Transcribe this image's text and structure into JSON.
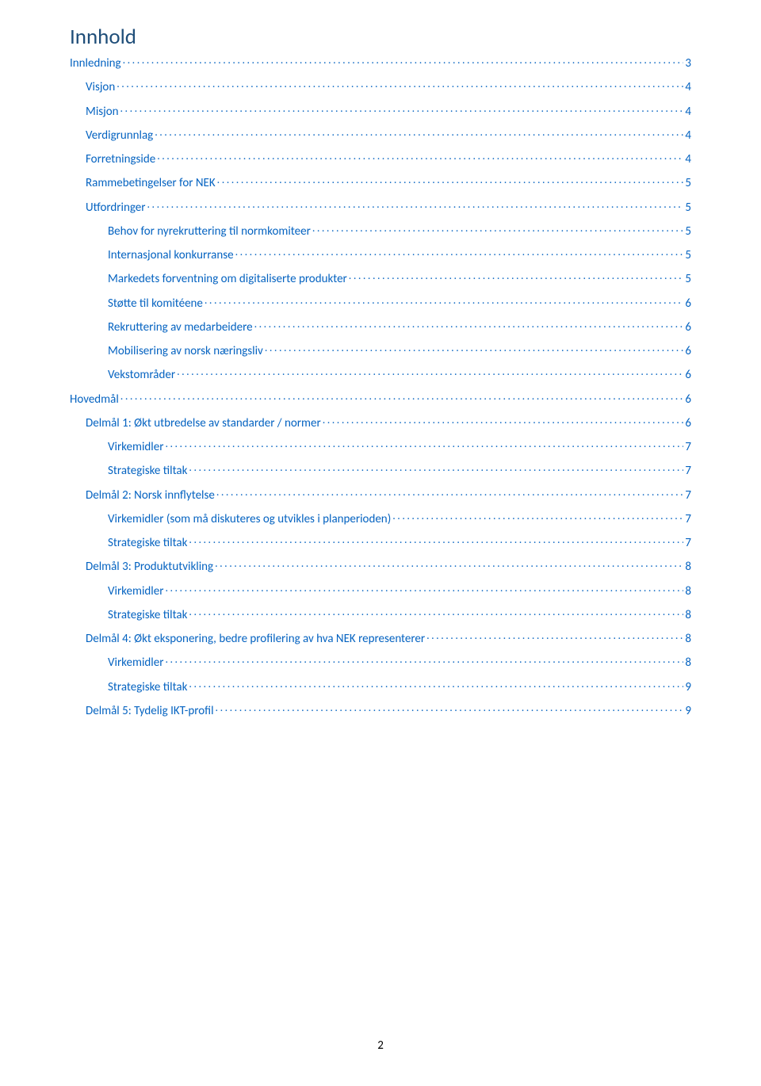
{
  "title": "Innhold",
  "title_color": "#1f4e79",
  "link_color": "#0563c1",
  "dot_color": "#0563c1",
  "text_font_size": 15,
  "title_font_size": 27,
  "background_color": "#ffffff",
  "page_number": "2",
  "entries": [
    {
      "label": "Innledning",
      "page": "3",
      "indent": 0
    },
    {
      "label": "Visjon",
      "page": "4",
      "indent": 1
    },
    {
      "label": "Misjon",
      "page": "4",
      "indent": 1
    },
    {
      "label": "Verdigrunnlag",
      "page": "4",
      "indent": 1
    },
    {
      "label": "Forretningside",
      "page": "4",
      "indent": 1
    },
    {
      "label": "Rammebetingelser for NEK",
      "page": "5",
      "indent": 1
    },
    {
      "label": "Utfordringer",
      "page": "5",
      "indent": 1
    },
    {
      "label": "Behov for nyrekruttering til normkomiteer",
      "page": "5",
      "indent": 2
    },
    {
      "label": "Internasjonal konkurranse",
      "page": "5",
      "indent": 2
    },
    {
      "label": "Markedets forventning om digitaliserte produkter",
      "page": "5",
      "indent": 2
    },
    {
      "label": "Støtte til komitéene",
      "page": "6",
      "indent": 2
    },
    {
      "label": "Rekruttering av medarbeidere",
      "page": "6",
      "indent": 2
    },
    {
      "label": "Mobilisering av norsk næringsliv",
      "page": "6",
      "indent": 2
    },
    {
      "label": "Vekstområder",
      "page": "6",
      "indent": 2
    },
    {
      "label": "Hovedmål",
      "page": "6",
      "indent": 0
    },
    {
      "label": "Delmål 1: Økt utbredelse av standarder / normer",
      "page": "6",
      "indent": 1
    },
    {
      "label": "Virkemidler",
      "page": "7",
      "indent": 2
    },
    {
      "label": "Strategiske tiltak",
      "page": "7",
      "indent": 2
    },
    {
      "label": "Delmål 2: Norsk innflytelse",
      "page": "7",
      "indent": 1
    },
    {
      "label": "Virkemidler (som må diskuteres og utvikles i planperioden)",
      "page": "7",
      "indent": 2
    },
    {
      "label": "Strategiske tiltak",
      "page": "7",
      "indent": 2
    },
    {
      "label": "Delmål 3: Produktutvikling",
      "page": "8",
      "indent": 1
    },
    {
      "label": "Virkemidler",
      "page": "8",
      "indent": 2
    },
    {
      "label": "Strategiske tiltak",
      "page": "8",
      "indent": 2
    },
    {
      "label": "Delmål 4: Økt eksponering, bedre profilering av hva NEK representerer",
      "page": "8",
      "indent": 1
    },
    {
      "label": "Virkemidler",
      "page": "8",
      "indent": 2
    },
    {
      "label": "Strategiske tiltak",
      "page": "9",
      "indent": 2
    },
    {
      "label": "Delmål 5: Tydelig IKT-profil",
      "page": "9",
      "indent": 1
    }
  ]
}
